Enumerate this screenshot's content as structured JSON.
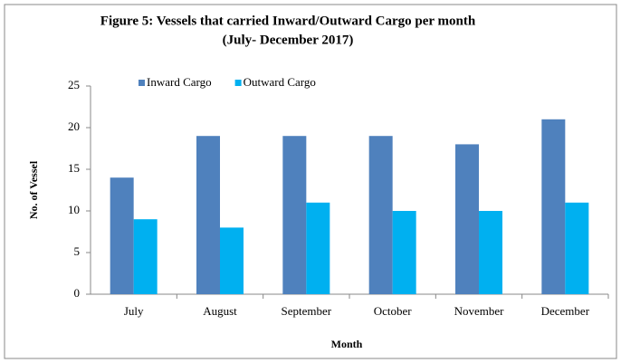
{
  "chart_data": {
    "type": "bar",
    "title": "Figure 5: Vessels that carried Inward/Outward Cargo per month",
    "subtitle": "(July- December 2017)",
    "x_label": "Month",
    "y_label": "No. of Vessel",
    "categories": [
      "July",
      "August",
      "September",
      "October",
      "November",
      "December"
    ],
    "series": [
      {
        "name": "Inward Cargo",
        "color": "#4f81bd",
        "values": [
          14,
          19,
          19,
          19,
          18,
          21
        ]
      },
      {
        "name": "Outward Cargo",
        "color": "#00b0f0",
        "values": [
          9,
          8,
          11,
          10,
          10,
          11
        ]
      }
    ],
    "ylim": [
      0,
      25
    ],
    "yticks": [
      0,
      5,
      10,
      15,
      20,
      25
    ],
    "grid": false,
    "legend": "top"
  }
}
